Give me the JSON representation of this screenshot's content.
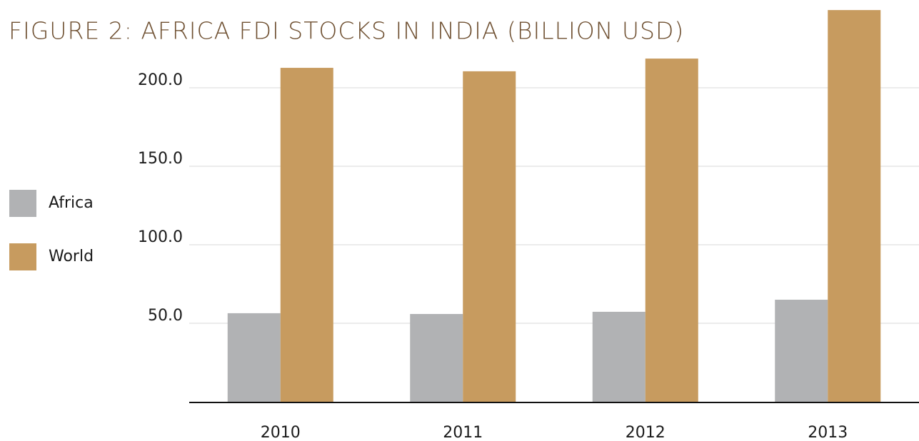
{
  "chart_data": {
    "type": "bar",
    "title": "FIGURE 2: AFRICA FDI STOCKS IN INDIA (BILLION USD)",
    "categories": [
      "2010",
      "2011",
      "2012",
      "2013"
    ],
    "series": [
      {
        "name": "Africa",
        "color": "#b1b2b4",
        "values": [
          56.4,
          55.9,
          57.3,
          65.0
        ]
      },
      {
        "name": "World",
        "color": "#c79b5f",
        "values": [
          212.7,
          210.5,
          218.6,
          249.5
        ]
      }
    ],
    "ylim": [
      0,
      250
    ],
    "yticks": [
      {
        "value": 50,
        "label": "50.0"
      },
      {
        "value": 100,
        "label": "100.0"
      },
      {
        "value": 150,
        "label": "150.0"
      },
      {
        "value": 200,
        "label": "200.0"
      }
    ],
    "grid": true,
    "legend": "left"
  }
}
